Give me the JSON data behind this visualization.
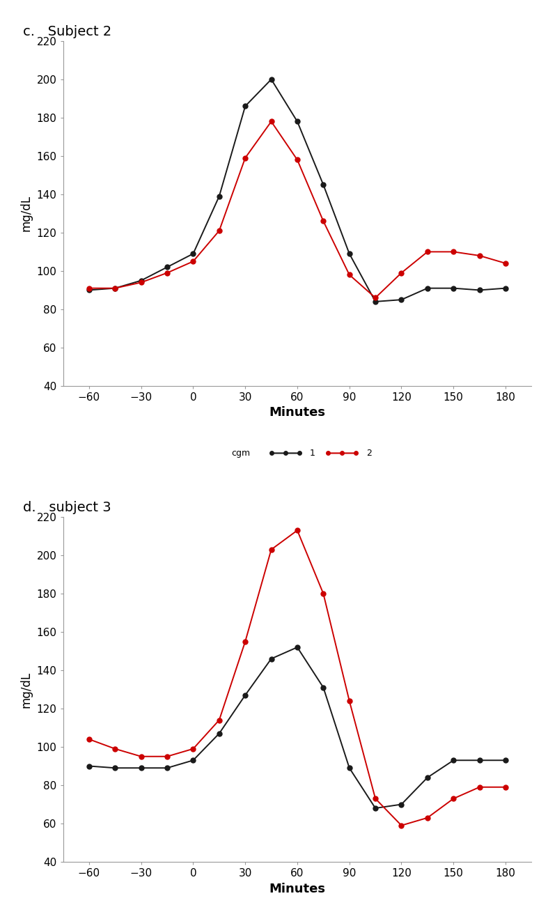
{
  "x_values": [
    -60,
    -45,
    -30,
    -15,
    0,
    15,
    30,
    45,
    60,
    75,
    90,
    105,
    120,
    135,
    150,
    165,
    180
  ],
  "subject2": {
    "title": "c.   Subject 2",
    "series1_black": [
      90,
      91,
      95,
      102,
      109,
      139,
      186,
      200,
      178,
      145,
      109,
      84,
      85,
      91,
      91,
      90,
      91
    ],
    "series2_red": [
      91,
      91,
      94,
      99,
      105,
      121,
      159,
      178,
      158,
      126,
      98,
      86,
      99,
      110,
      110,
      108,
      104
    ]
  },
  "subject3": {
    "title": "d.   subject 3",
    "series1_black": [
      90,
      89,
      89,
      89,
      93,
      107,
      127,
      146,
      152,
      131,
      89,
      68,
      70,
      84,
      93,
      93,
      93
    ],
    "series2_red": [
      104,
      99,
      95,
      95,
      99,
      114,
      155,
      203,
      213,
      180,
      124,
      73,
      59,
      63,
      73,
      79,
      79
    ]
  },
  "ylim": [
    40,
    220
  ],
  "yticks": [
    40,
    60,
    80,
    100,
    120,
    140,
    160,
    180,
    200,
    220
  ],
  "xticks": [
    -60,
    -30,
    0,
    30,
    60,
    90,
    120,
    150,
    180
  ],
  "xtick_labels": [
    "−60",
    "−30",
    "0",
    "30",
    "60",
    "90",
    "120",
    "150",
    "180"
  ],
  "xlabel": "Minutes",
  "ylabel": "mg/dL",
  "black_color": "#1a1a1a",
  "red_color": "#cc0000",
  "legend_label_cgm": "cgm",
  "legend_label_1": "1",
  "legend_label_2": "2",
  "spine_color": "#999999"
}
